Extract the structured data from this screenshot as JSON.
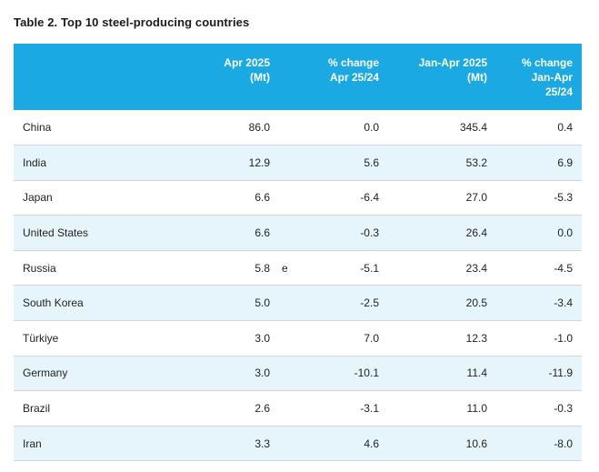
{
  "title": "Table 2. Top 10 steel-producing countries",
  "headers": {
    "apr": [
      "Apr 2025",
      "(Mt)"
    ],
    "apr_change": [
      "% change",
      "Apr 25/24"
    ],
    "ytd": [
      "Jan-Apr 2025",
      "(Mt)"
    ],
    "ytd_change": [
      "% change",
      "Jan-Apr",
      "25/24"
    ]
  },
  "rows": [
    {
      "country": "China",
      "apr": "86.0",
      "flag": "",
      "apr_change": "0.0",
      "ytd": "345.4",
      "ytd_change": "0.4"
    },
    {
      "country": "India",
      "apr": "12.9",
      "flag": "",
      "apr_change": "5.6",
      "ytd": "53.2",
      "ytd_change": "6.9"
    },
    {
      "country": "Japan",
      "apr": "6.6",
      "flag": "",
      "apr_change": "-6.4",
      "ytd": "27.0",
      "ytd_change": "-5.3"
    },
    {
      "country": "United States",
      "apr": "6.6",
      "flag": "",
      "apr_change": "-0.3",
      "ytd": "26.4",
      "ytd_change": "0.0"
    },
    {
      "country": "Russia",
      "apr": "5.8",
      "flag": "e",
      "apr_change": "-5.1",
      "ytd": "23.4",
      "ytd_change": "-4.5"
    },
    {
      "country": "South Korea",
      "apr": "5.0",
      "flag": "",
      "apr_change": "-2.5",
      "ytd": "20.5",
      "ytd_change": "-3.4"
    },
    {
      "country": "Türkiye",
      "apr": "3.0",
      "flag": "",
      "apr_change": "7.0",
      "ytd": "12.3",
      "ytd_change": "-1.0"
    },
    {
      "country": "Germany",
      "apr": "3.0",
      "flag": "",
      "apr_change": "-10.1",
      "ytd": "11.4",
      "ytd_change": "-11.9"
    },
    {
      "country": "Brazil",
      "apr": "2.6",
      "flag": "",
      "apr_change": "-3.1",
      "ytd": "11.0",
      "ytd_change": "-0.3"
    },
    {
      "country": "Iran",
      "apr": "3.3",
      "flag": "",
      "apr_change": "4.6",
      "ytd": "10.6",
      "ytd_change": "-8.0"
    }
  ],
  "colors": {
    "header_bg": "#1aa9e2",
    "row_shade": "#e6f5fc"
  }
}
